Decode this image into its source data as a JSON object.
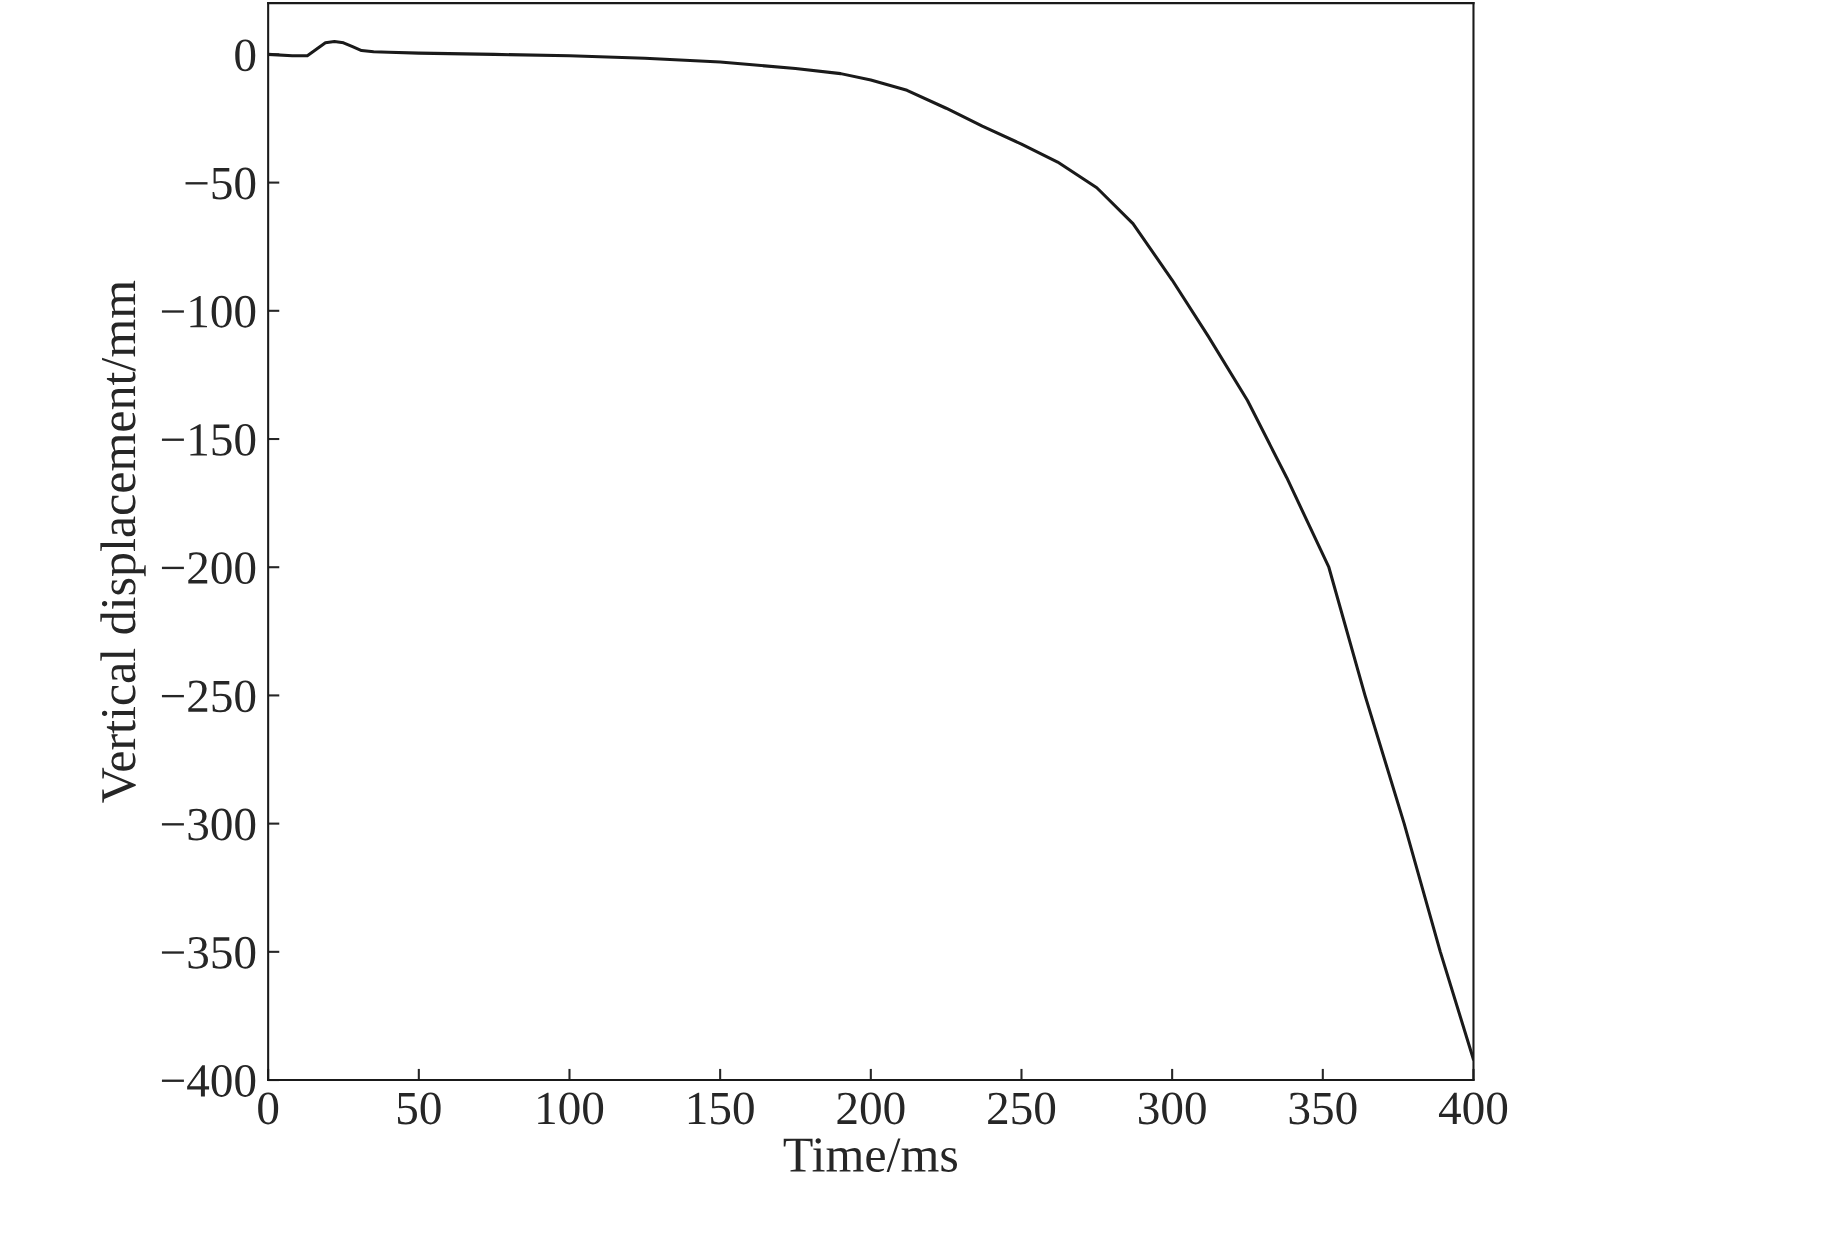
{
  "chart_data": {
    "type": "line",
    "xlabel": "Time/ms",
    "ylabel": "Vertical displacement/mm",
    "series": [
      {
        "color": "#1a1a1a",
        "x": [
          0,
          8,
          13,
          16,
          19,
          22,
          25,
          28,
          31,
          35,
          40,
          50,
          75,
          100,
          125,
          150,
          175,
          190,
          200,
          212,
          225,
          237,
          250,
          262,
          275,
          287,
          300,
          312,
          325,
          338,
          352,
          364,
          377,
          389,
          400
        ],
        "values": [
          0,
          -0.5,
          -0.5,
          2,
          4.5,
          5,
          4.5,
          3,
          1.5,
          1,
          0.8,
          0.5,
          0,
          -0.5,
          -1.5,
          -3,
          -5.5,
          -7.5,
          -10,
          -14,
          -21,
          -28,
          -35,
          -42,
          -52,
          -66,
          -88,
          -110,
          -135,
          -165,
          -200,
          -250,
          -300,
          -350,
          -392
        ]
      }
    ],
    "xlim": [
      0,
      400
    ],
    "ylim": [
      -400,
      20
    ],
    "xticks": [
      0,
      50,
      100,
      150,
      200,
      250,
      300,
      350,
      400
    ],
    "yticks": [
      0,
      {
        "value": -50,
        "label": "−50"
      },
      {
        "value": -100,
        "label": "−100"
      },
      {
        "value": -150,
        "label": "−150"
      },
      {
        "value": -200,
        "label": "−200"
      },
      {
        "value": -250,
        "label": "−250"
      },
      {
        "value": -300,
        "label": "−300"
      },
      {
        "value": -350,
        "label": "−350"
      },
      {
        "value": -400,
        "label": "−400"
      }
    ],
    "grid": false,
    "legend": false,
    "marker": "none",
    "line_style": "solid"
  }
}
